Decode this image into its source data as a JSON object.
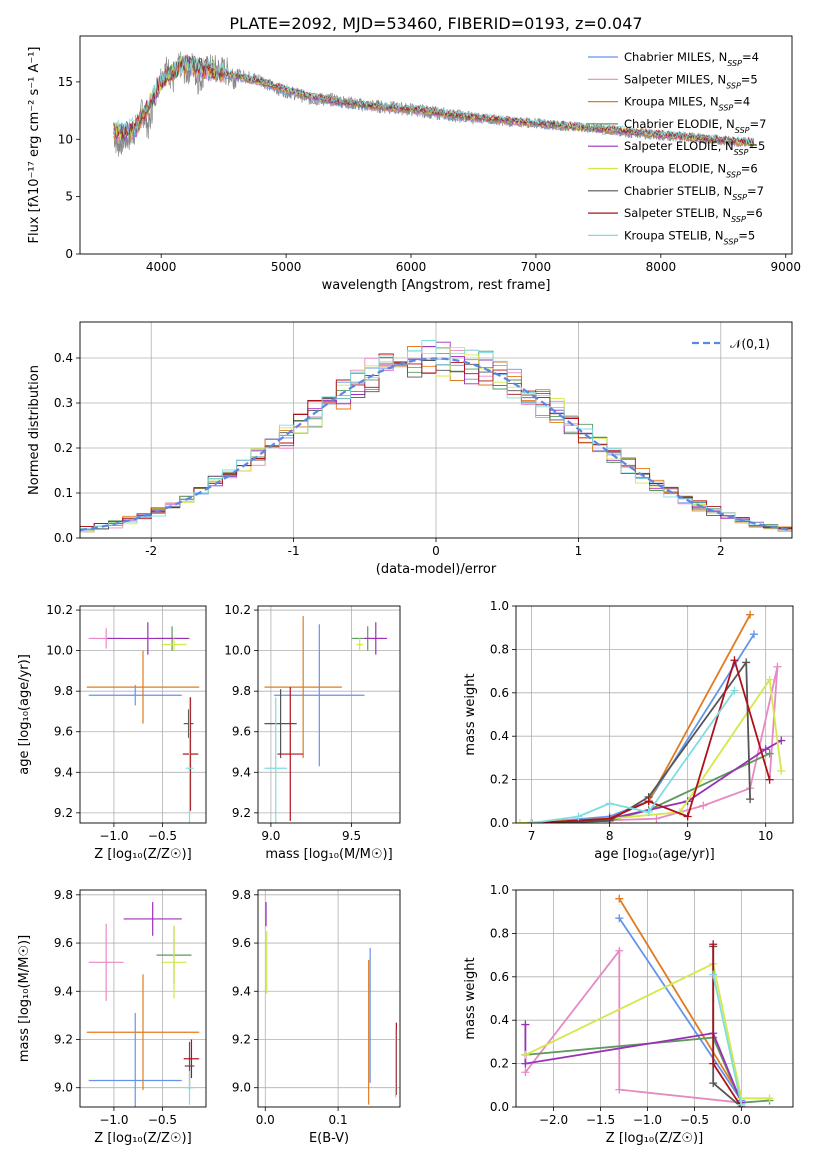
{
  "figure_title": "PLATE=2092, MJD=53460, FIBERID=0193, z=0.047",
  "models": [
    {
      "name": "Chabrier MILES",
      "nssp": "4",
      "color": "#6495ed"
    },
    {
      "name": "Salpeter MILES",
      "nssp": "5",
      "color": "#e78ac3"
    },
    {
      "name": "Kroupa MILES",
      "nssp": "4",
      "color": "#e07b20"
    },
    {
      "name": "Chabrier ELODIE",
      "nssp": "7",
      "color": "#5b9a5b"
    },
    {
      "name": "Salpeter ELODIE",
      "nssp": "5",
      "color": "#9b30b8"
    },
    {
      "name": "Kroupa ELODIE",
      "nssp": "6",
      "color": "#d4e84a"
    },
    {
      "name": "Chabrier STELIB",
      "nssp": "7",
      "color": "#555555"
    },
    {
      "name": "Salpeter STELIB",
      "nssp": "6",
      "color": "#b0101a"
    },
    {
      "name": "Kroupa STELIB",
      "nssp": "5",
      "color": "#7fdde0"
    }
  ],
  "nssp_prefix": "N",
  "nssp_sub": "SSP",
  "chart_data": [
    {
      "id": "spectrum",
      "type": "line",
      "xlabel": "wavelength [Angstrom, rest frame]",
      "ylabel": "Flux [fλ10⁻¹⁷ erg cm⁻² s⁻¹ A⁻¹]",
      "xlim": [
        3350,
        9050
      ],
      "ylim": [
        0,
        19
      ],
      "xticks": [
        4000,
        5000,
        6000,
        7000,
        8000,
        9000
      ],
      "yticks": [
        0,
        5,
        10,
        15
      ],
      "grid": false,
      "legend": "top-right",
      "data_color": "#888888",
      "data_points": [
        [
          3620,
          10.5
        ],
        [
          3650,
          9.5
        ],
        [
          3700,
          10.0
        ],
        [
          3750,
          10.2
        ],
        [
          3800,
          11.0
        ],
        [
          3850,
          12.5
        ],
        [
          3900,
          11.0
        ],
        [
          3950,
          14.0
        ],
        [
          4000,
          15.5
        ],
        [
          4050,
          16.2
        ],
        [
          4100,
          15.0
        ],
        [
          4150,
          16.5
        ],
        [
          4200,
          15.8
        ],
        [
          4250,
          16.5
        ],
        [
          4300,
          15.0
        ],
        [
          4350,
          16.0
        ],
        [
          4400,
          16.2
        ],
        [
          4500,
          16.0
        ],
        [
          4600,
          15.6
        ],
        [
          4700,
          15.4
        ],
        [
          4800,
          15.2
        ],
        [
          4900,
          14.5
        ],
        [
          5000,
          14.2
        ],
        [
          5100,
          13.9
        ],
        [
          5200,
          13.5
        ],
        [
          5300,
          13.5
        ],
        [
          5400,
          13.4
        ],
        [
          5500,
          13.2
        ],
        [
          5600,
          13.0
        ],
        [
          5800,
          12.8
        ],
        [
          6000,
          12.6
        ],
        [
          6200,
          12.3
        ],
        [
          6400,
          12.0
        ],
        [
          6600,
          11.8
        ],
        [
          6800,
          11.5
        ],
        [
          7000,
          11.4
        ],
        [
          7200,
          11.2
        ],
        [
          7400,
          11.0
        ],
        [
          7600,
          10.8
        ],
        [
          7800,
          10.5
        ],
        [
          8000,
          10.3
        ],
        [
          8200,
          10.2
        ],
        [
          8400,
          10.0
        ],
        [
          8600,
          9.8
        ],
        [
          8750,
          9.6
        ]
      ],
      "model_points": [
        [
          3620,
          10.8
        ],
        [
          3700,
          10.6
        ],
        [
          3800,
          11.0
        ],
        [
          3900,
          13.0
        ],
        [
          4000,
          15.0
        ],
        [
          4100,
          16.0
        ],
        [
          4200,
          16.5
        ],
        [
          4300,
          16.3
        ],
        [
          4400,
          16.0
        ],
        [
          4500,
          15.8
        ],
        [
          4600,
          15.5
        ],
        [
          4800,
          15.0
        ],
        [
          5000,
          14.3
        ],
        [
          5200,
          13.7
        ],
        [
          5400,
          13.3
        ],
        [
          5600,
          13.0
        ],
        [
          5800,
          12.8
        ],
        [
          6000,
          12.6
        ],
        [
          6200,
          12.3
        ],
        [
          6400,
          12.0
        ],
        [
          6600,
          11.8
        ],
        [
          6800,
          11.6
        ],
        [
          7000,
          11.4
        ],
        [
          7200,
          11.2
        ],
        [
          7400,
          11.0
        ],
        [
          7600,
          10.8
        ],
        [
          7800,
          10.6
        ],
        [
          8000,
          10.4
        ],
        [
          8200,
          10.2
        ],
        [
          8400,
          10.0
        ],
        [
          8600,
          9.8
        ],
        [
          8750,
          9.7
        ]
      ]
    },
    {
      "id": "residuals",
      "type": "histogram",
      "xlabel": "(data-model)/error",
      "ylabel": "Normed distribution",
      "xlim": [
        -2.5,
        2.5
      ],
      "ylim": [
        0,
        0.48
      ],
      "xticks": [
        -2,
        -1,
        0,
        1,
        2
      ],
      "yticks": [
        0.0,
        0.1,
        0.2,
        0.3,
        0.4
      ],
      "grid": true,
      "legend": "top-right",
      "reference_label": "𝒩(0,1)",
      "reference_color": "#5b86e5",
      "bin_width": 0.1
    },
    {
      "id": "age-vs-Z",
      "type": "errorbar",
      "xlabel": "Z [log₁₀(Z/Z☉)]",
      "ylabel": "age  [log₁₀(age/yr)]",
      "xlim": [
        -1.35,
        -0.05
      ],
      "ylim": [
        9.15,
        10.22
      ],
      "xticks": [
        -1.0,
        -0.5
      ],
      "xticklabels": [
        "−1.0",
        "−0.5"
      ],
      "yticks": [
        9.2,
        9.4,
        9.6,
        9.8,
        10.0,
        10.2
      ],
      "grid": true,
      "points": [
        {
          "m": 0,
          "x": -0.78,
          "xe": 0.48,
          "y": 9.78,
          "ye": 0.05
        },
        {
          "m": 1,
          "x": -1.08,
          "xe": 0.18,
          "y": 10.06,
          "ye": 0.05
        },
        {
          "m": 2,
          "x": -0.7,
          "xe": 0.58,
          "y": 9.82,
          "ye": 0.18
        },
        {
          "m": 3,
          "x": -0.4,
          "xe": 0.18,
          "y": 10.06,
          "ye": 0.06
        },
        {
          "m": 4,
          "x": -0.65,
          "xe": 0.42,
          "y": 10.06,
          "ye": 0.08
        },
        {
          "m": 5,
          "x": -0.38,
          "xe": 0.13,
          "y": 10.03,
          "ye": 0.03
        },
        {
          "m": 6,
          "x": -0.23,
          "xe": 0.05,
          "y": 9.64,
          "ye": 0.07
        },
        {
          "m": 7,
          "x": -0.21,
          "xe": 0.08,
          "y": 9.49,
          "ye": 0.28
        },
        {
          "m": 8,
          "x": -0.22,
          "xe": 0.04,
          "y": 9.42,
          "ye": 0.35
        }
      ]
    },
    {
      "id": "age-vs-mass",
      "type": "errorbar",
      "xlabel": "mass [log₁₀(M/M☉)]",
      "ylabel": "",
      "xlim": [
        8.92,
        9.8
      ],
      "ylim": [
        9.15,
        10.22
      ],
      "xticks": [
        9.0,
        9.5
      ],
      "xticklabels": [
        "9.0",
        "9.5"
      ],
      "yticks": [
        9.2,
        9.4,
        9.6,
        9.8,
        10.0,
        10.2
      ],
      "grid": true,
      "points": [
        {
          "m": 0,
          "x": 9.3,
          "xe": 0.28,
          "y": 9.78,
          "ye": 0.35
        },
        {
          "m": 2,
          "x": 9.2,
          "xe": 0.24,
          "y": 9.82,
          "ye": 0.35
        },
        {
          "m": 3,
          "x": 9.6,
          "xe": 0.1,
          "y": 10.06,
          "ye": 0.06
        },
        {
          "m": 4,
          "x": 9.65,
          "xe": 0.07,
          "y": 10.06,
          "ye": 0.08
        },
        {
          "m": 5,
          "x": 9.55,
          "xe": 0.02,
          "y": 10.03,
          "ye": 0.03
        },
        {
          "m": 6,
          "x": 9.06,
          "xe": 0.1,
          "y": 9.64,
          "ye": 0.17
        },
        {
          "m": 7,
          "x": 9.12,
          "xe": 0.08,
          "y": 9.49,
          "ye": 0.33
        },
        {
          "m": 8,
          "x": 9.03,
          "xe": 0.07,
          "y": 9.42,
          "ye": 0.35
        }
      ]
    },
    {
      "id": "weight-vs-age",
      "type": "line",
      "xlabel": "age  [log₁₀(age/yr)]",
      "ylabel": "mass weight",
      "xlim": [
        6.8,
        10.35
      ],
      "ylim": [
        0,
        1
      ],
      "xticks": [
        7,
        8,
        9,
        10
      ],
      "xticklabels": [
        "7",
        "8",
        "9",
        "10"
      ],
      "yticks": [
        0.0,
        0.2,
        0.4,
        0.6,
        0.8,
        1.0
      ],
      "yticklabels": [
        "0.0",
        "0.2",
        "0.4",
        "0.6",
        "0.8",
        "1.0"
      ],
      "grid": true,
      "series": [
        {
          "m": 0,
          "points": [
            [
              7.0,
              0.0
            ],
            [
              8.0,
              0.03
            ],
            [
              8.5,
              0.1
            ],
            [
              9.85,
              0.87
            ]
          ]
        },
        {
          "m": 1,
          "points": [
            [
              7.0,
              0.0
            ],
            [
              8.6,
              0.02
            ],
            [
              9.2,
              0.08
            ],
            [
              9.8,
              0.16
            ],
            [
              10.15,
              0.72
            ],
            [
              10.05,
              0.2
            ]
          ]
        },
        {
          "m": 2,
          "points": [
            [
              7.0,
              0.0
            ],
            [
              8.0,
              0.02
            ],
            [
              8.5,
              0.1
            ],
            [
              9.8,
              0.96
            ]
          ]
        },
        {
          "m": 3,
          "points": [
            [
              7.0,
              0.0
            ],
            [
              8.0,
              0.01
            ],
            [
              8.5,
              0.06
            ],
            [
              10.05,
              0.32
            ]
          ]
        },
        {
          "m": 4,
          "points": [
            [
              7.0,
              0.0
            ],
            [
              8.0,
              0.02
            ],
            [
              9.0,
              0.1
            ],
            [
              10.0,
              0.34
            ],
            [
              10.2,
              0.38
            ]
          ]
        },
        {
          "m": 5,
          "points": [
            [
              6.85,
              0.0
            ],
            [
              8.0,
              0.02
            ],
            [
              8.9,
              0.05
            ],
            [
              10.05,
              0.66
            ],
            [
              10.2,
              0.24
            ]
          ]
        },
        {
          "m": 6,
          "points": [
            [
              7.0,
              0.0
            ],
            [
              8.0,
              0.01
            ],
            [
              8.5,
              0.12
            ],
            [
              9.75,
              0.74
            ],
            [
              9.8,
              0.11
            ]
          ]
        },
        {
          "m": 7,
          "points": [
            [
              7.0,
              0.0
            ],
            [
              8.0,
              0.02
            ],
            [
              8.5,
              0.1
            ],
            [
              9.0,
              0.03
            ],
            [
              9.6,
              0.75
            ],
            [
              10.05,
              0.2
            ]
          ]
        },
        {
          "m": 8,
          "points": [
            [
              7.0,
              0.0
            ],
            [
              7.6,
              0.03
            ],
            [
              8.0,
              0.09
            ],
            [
              8.5,
              0.05
            ],
            [
              9.6,
              0.61
            ]
          ]
        }
      ]
    },
    {
      "id": "mass-vs-Z",
      "type": "errorbar",
      "xlabel": "Z [log₁₀(Z/Z☉)]",
      "ylabel": "mass [log₁₀(M/M☉)]",
      "xlim": [
        -1.35,
        -0.05
      ],
      "ylim": [
        8.92,
        9.82
      ],
      "xticks": [
        -1.0,
        -0.5
      ],
      "xticklabels": [
        "−1.0",
        "−0.5"
      ],
      "yticks": [
        9.0,
        9.2,
        9.4,
        9.6,
        9.8
      ],
      "grid": true,
      "points": [
        {
          "m": 0,
          "x": -0.78,
          "xe": 0.48,
          "y": 9.03,
          "ye": 0.28
        },
        {
          "m": 1,
          "x": -1.08,
          "xe": 0.18,
          "y": 9.52,
          "ye": 0.16
        },
        {
          "m": 2,
          "x": -0.7,
          "xe": 0.58,
          "y": 9.23,
          "ye": 0.24
        },
        {
          "m": 3,
          "x": -0.38,
          "xe": 0.18,
          "y": 9.55,
          "ye": 0.12
        },
        {
          "m": 4,
          "x": -0.6,
          "xe": 0.3,
          "y": 9.7,
          "ye": 0.07
        },
        {
          "m": 5,
          "x": -0.38,
          "xe": 0.13,
          "y": 9.52,
          "ye": 0.15
        },
        {
          "m": 6,
          "x": -0.22,
          "xe": 0.05,
          "y": 9.09,
          "ye": 0.1
        },
        {
          "m": 7,
          "x": -0.2,
          "xe": 0.08,
          "y": 9.12,
          "ye": 0.08
        },
        {
          "m": 8,
          "x": -0.22,
          "xe": 0.04,
          "y": 9.0,
          "ye": 0.07
        }
      ]
    },
    {
      "id": "mass-vs-ebv",
      "type": "errorbar",
      "xlabel": "E(B-V)",
      "ylabel": "",
      "xlim": [
        -0.01,
        0.185
      ],
      "ylim": [
        8.92,
        9.82
      ],
      "xticks": [
        0.0,
        0.1
      ],
      "xticklabels": [
        "0.0",
        "0.1"
      ],
      "yticks": [
        9.0,
        9.2,
        9.4,
        9.6,
        9.8
      ],
      "grid": true,
      "points": [
        {
          "m": 0,
          "x": 0.144,
          "xe": 0.0,
          "y": 9.3,
          "ye": 0.28
        },
        {
          "m": 2,
          "x": 0.142,
          "xe": 0.0,
          "y": 9.23,
          "ye": 0.3
        },
        {
          "m": 4,
          "x": 0.001,
          "xe": 0.0,
          "y": 9.72,
          "ye": 0.05
        },
        {
          "m": 5,
          "x": 0.002,
          "xe": 0.0,
          "y": 9.52,
          "ye": 0.13
        },
        {
          "m": 7,
          "x": 0.18,
          "xe": 0.0,
          "y": 9.12,
          "ye": 0.15
        },
        {
          "m": 8,
          "x": 0.179,
          "xe": 0.0,
          "y": 9.1,
          "ye": 0.14
        }
      ]
    },
    {
      "id": "weight-vs-Z",
      "type": "line",
      "xlabel": "Z [log₁₀(Z/Z☉)]",
      "ylabel": "mass weight",
      "xlim": [
        -2.4,
        0.55
      ],
      "ylim": [
        0,
        1
      ],
      "xticks": [
        -2.0,
        -1.5,
        -1.0,
        -0.5,
        0.0
      ],
      "xticklabels": [
        "−2.0",
        "−1.5",
        "−1.0",
        "−0.5",
        "0.0"
      ],
      "yticks": [
        0.0,
        0.2,
        0.4,
        0.6,
        0.8,
        1.0
      ],
      "yticklabels": [
        "0.0",
        "0.2",
        "0.4",
        "0.6",
        "0.8",
        "1.0"
      ],
      "grid": true,
      "series": [
        {
          "m": 0,
          "points": [
            [
              -1.3,
              0.87
            ],
            [
              0.0,
              0.03
            ],
            [
              0.0,
              0.0
            ]
          ]
        },
        {
          "m": 1,
          "points": [
            [
              -2.3,
              0.16
            ],
            [
              -1.3,
              0.72
            ],
            [
              -1.3,
              0.08
            ],
            [
              0.0,
              0.02
            ]
          ]
        },
        {
          "m": 2,
          "points": [
            [
              -1.3,
              0.96
            ],
            [
              0.0,
              0.04
            ]
          ]
        },
        {
          "m": 3,
          "points": [
            [
              -2.3,
              0.24
            ],
            [
              -0.3,
              0.32
            ],
            [
              0.0,
              0.02
            ],
            [
              0.3,
              0.03
            ]
          ]
        },
        {
          "m": 4,
          "points": [
            [
              -2.3,
              0.38
            ],
            [
              -2.3,
              0.2
            ],
            [
              -0.3,
              0.34
            ],
            [
              0.0,
              0.02
            ]
          ]
        },
        {
          "m": 5,
          "points": [
            [
              -2.3,
              0.24
            ],
            [
              -0.3,
              0.66
            ],
            [
              0.0,
              0.04
            ],
            [
              0.3,
              0.04
            ]
          ]
        },
        {
          "m": 6,
          "points": [
            [
              -0.3,
              0.74
            ],
            [
              -0.3,
              0.11
            ],
            [
              0.0,
              0.0
            ]
          ]
        },
        {
          "m": 7,
          "points": [
            [
              -0.3,
              0.75
            ],
            [
              -0.3,
              0.2
            ],
            [
              0.0,
              0.0
            ]
          ]
        },
        {
          "m": 8,
          "points": [
            [
              -0.3,
              0.61
            ],
            [
              0.0,
              0.01
            ]
          ]
        }
      ]
    }
  ]
}
